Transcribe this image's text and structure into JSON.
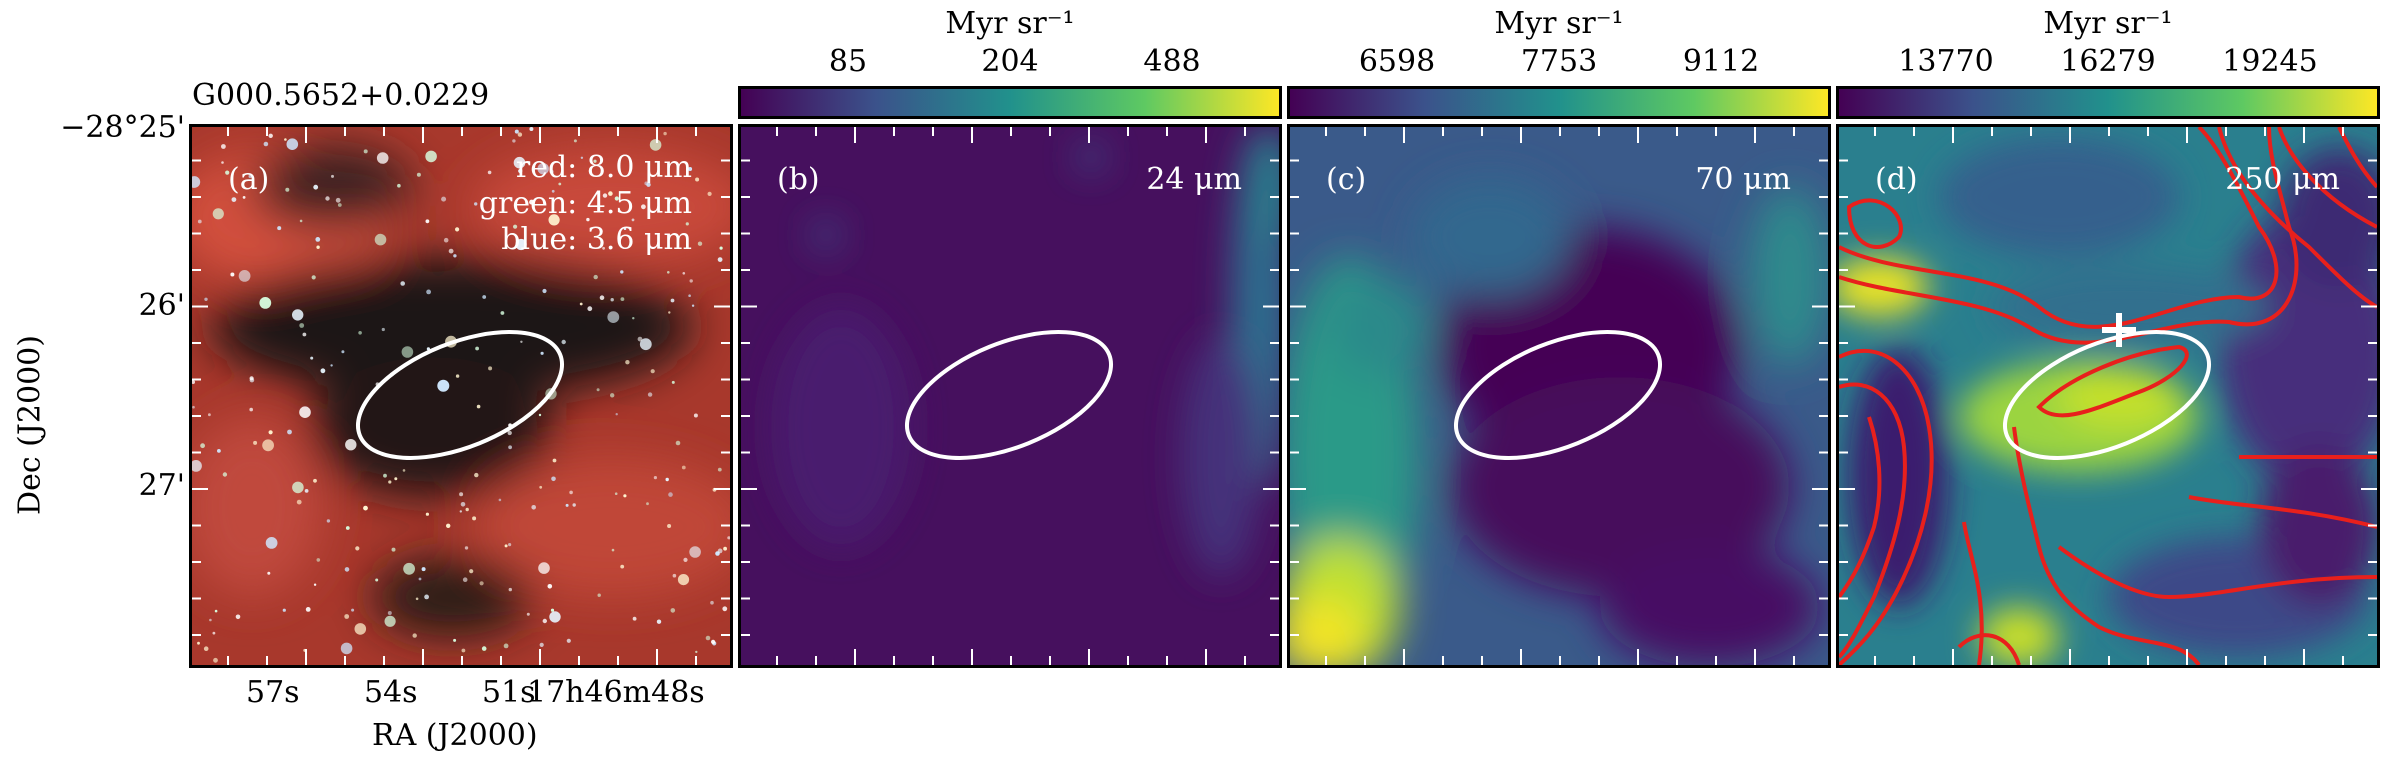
{
  "source_name": "G000.5652+0.0229",
  "axes": {
    "ylabel": "Dec (J2000)",
    "xlabel": "RA (J2000)",
    "dec_ticks": [
      "−28°25'",
      "26'",
      "27'"
    ],
    "ra_ticks": [
      "57s",
      "54s",
      "51s",
      "17h46m48s"
    ]
  },
  "panels": [
    {
      "label": "(a)",
      "legend": {
        "red": "red: 8.0 μm",
        "green": "green: 4.5 μm",
        "blue": "blue: 3.6 μm"
      }
    },
    {
      "label": "(b)",
      "band": "24 μm",
      "colorbar": {
        "unit": "Myr sr⁻¹",
        "ticks": [
          "85",
          "204",
          "488"
        ]
      }
    },
    {
      "label": "(c)",
      "band": "70 μm",
      "colorbar": {
        "unit": "Myr sr⁻¹",
        "ticks": [
          "6598",
          "7753",
          "9112"
        ]
      }
    },
    {
      "label": "(d)",
      "band": "250 μm",
      "colorbar": {
        "unit": "Myr sr⁻¹",
        "ticks": [
          "13770",
          "16279",
          "19245"
        ]
      }
    }
  ],
  "colors": {
    "colormap": [
      "#440154",
      "#3b528b",
      "#21918c",
      "#5ec962",
      "#fde725"
    ],
    "ellipse": "#ffffff",
    "contours": "#e8201c",
    "rgb_background": "#b33a2c"
  }
}
